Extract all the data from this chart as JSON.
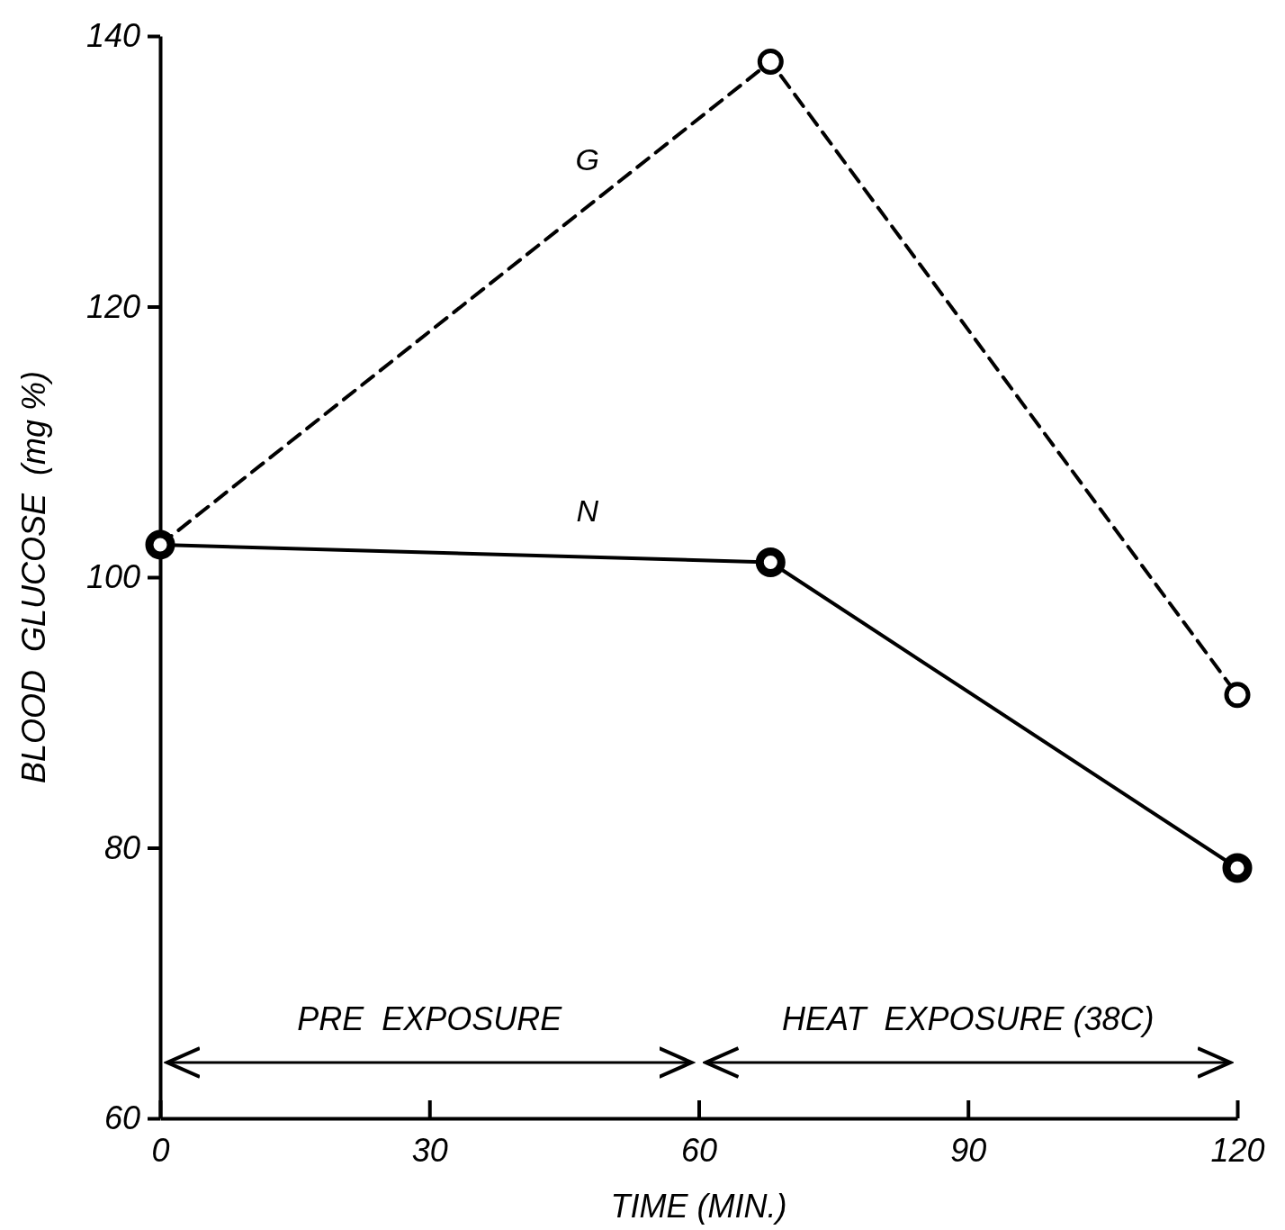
{
  "chart_data": {
    "type": "line",
    "xlabel": "TIME (MIN.)",
    "ylabel": "BLOOD  GLUCOSE  (mg %)",
    "x": [
      0,
      68,
      120
    ],
    "series": [
      {
        "name": "G",
        "color": "#000000",
        "values": [
          102.4,
          138.1,
          91.3
        ],
        "line_style": "dashed"
      },
      {
        "name": "N",
        "color": "#000000",
        "values": [
          102.4,
          101.1,
          78.5
        ],
        "line_style": "solid"
      }
    ],
    "xlim": [
      0,
      120
    ],
    "xticks": [
      0,
      30,
      60,
      90,
      120
    ],
    "ylim": [
      60,
      140
    ],
    "yticks": [
      60,
      80,
      100,
      120,
      140
    ],
    "annotations": [
      "PRE  EXPOSURE",
      "HEAT  EXPOSURE (38C)"
    ],
    "grid": false,
    "legend": false,
    "marker": "circle"
  }
}
